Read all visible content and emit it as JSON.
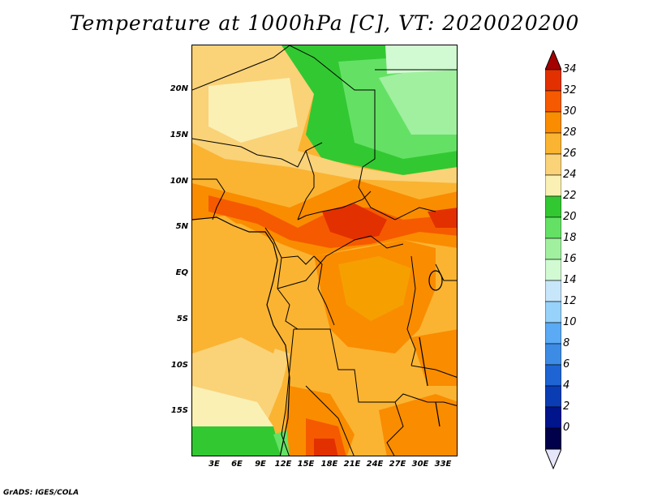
{
  "title": "Temperature at 1000hPa [C], VT: 2020020200",
  "credit": "GrADS: IGES/COLA",
  "map": {
    "lat_labels": [
      "20N",
      "15N",
      "10N",
      "5N",
      "EQ",
      "5S",
      "10S",
      "15S"
    ],
    "lon_labels": [
      "3E",
      "6E",
      "9E",
      "12E",
      "15E",
      "18E",
      "21E",
      "24E",
      "27E",
      "30E",
      "33E"
    ]
  },
  "colorbar": {
    "labels": [
      "34",
      "32",
      "30",
      "28",
      "26",
      "24",
      "22",
      "20",
      "18",
      "16",
      "14",
      "12",
      "10",
      "8",
      "6",
      "4",
      "2",
      "0"
    ],
    "colors": [
      "#a50000",
      "#e23000",
      "#f55a00",
      "#fa8c00",
      "#fab432",
      "#fad278",
      "#faf0b4",
      "#32c832",
      "#64e164",
      "#a0f0a0",
      "#d2fad2",
      "#c8e6fa",
      "#96d2fa",
      "#5aaaf5",
      "#3c8ce6",
      "#1e64d2",
      "#0a3cb4",
      "#00148c",
      "#00004b"
    ],
    "under_color": "#e6e6fa",
    "over_color": "#a50000"
  }
}
